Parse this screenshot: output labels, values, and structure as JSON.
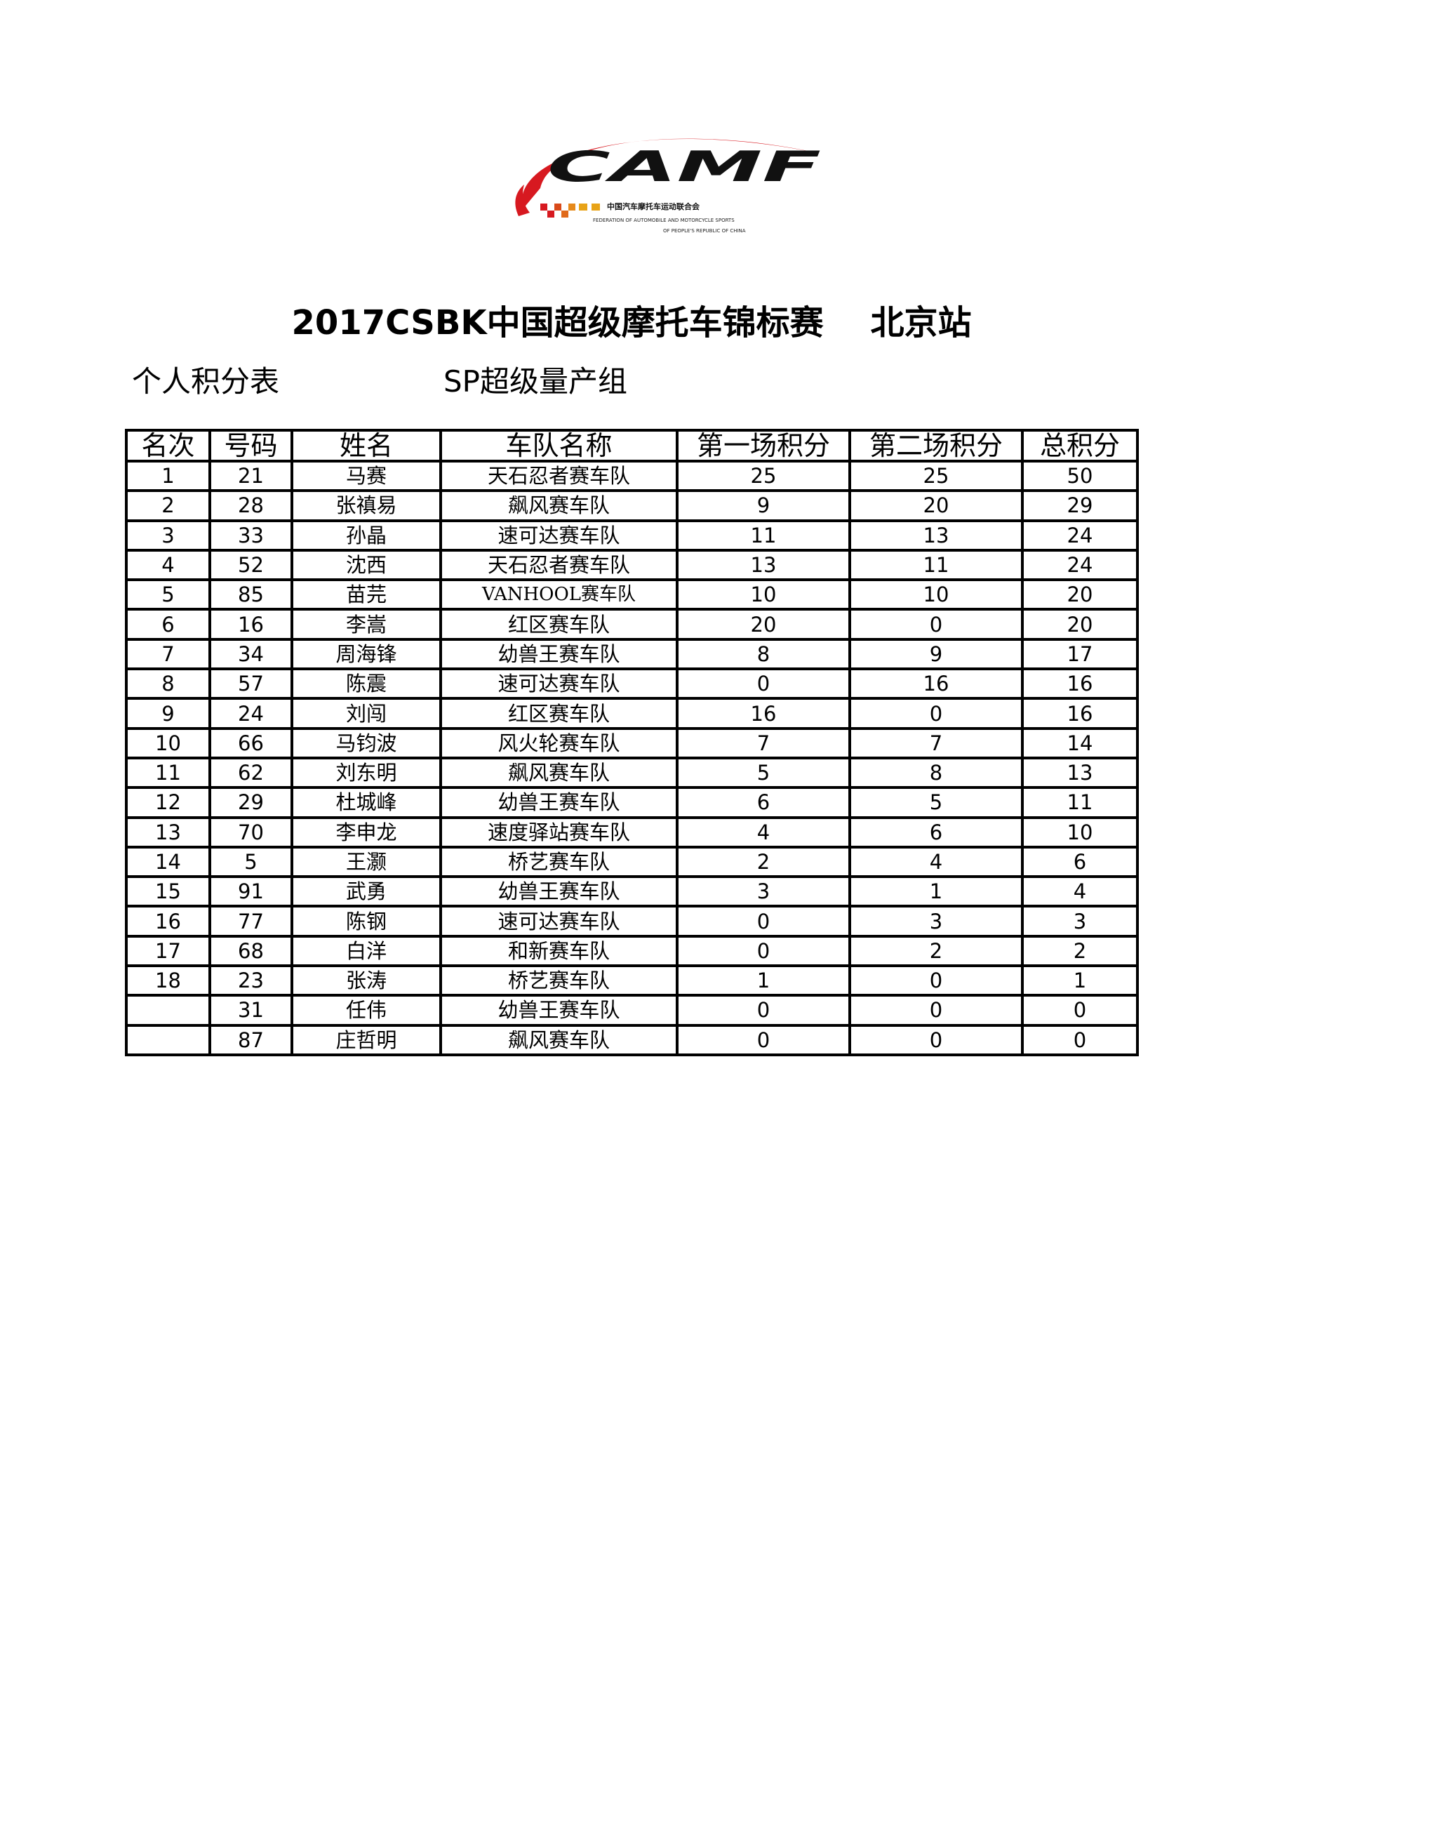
{
  "logo": {
    "text": "CAMF",
    "cn": "中国汽车摩托车运动联合会",
    "en1": "FEDERATION OF AUTOMOBILE AND MOTORCYCLE SPORTS",
    "en2": "OF PEOPLE'S REPUBLIC OF CHINA",
    "colors": {
      "swoosh": "#d71920",
      "wordmark": "#111111",
      "squares": "#e8a317"
    }
  },
  "title": "2017CSBK中国超级摩托车锦标赛    北京站",
  "subtitle_left": "个人积分表",
  "subtitle_right": "SP超级量产组",
  "table": {
    "headers": [
      "名次",
      "号码",
      "姓名",
      "车队名称",
      "第一场积分",
      "第二场积分",
      "总积分"
    ],
    "rows": [
      [
        "1",
        "21",
        "马赛",
        "天石忍者赛车队",
        "25",
        "25",
        "50"
      ],
      [
        "2",
        "28",
        "张禛易",
        "飙风赛车队",
        "9",
        "20",
        "29"
      ],
      [
        "3",
        "33",
        "孙晶",
        "速可达赛车队",
        "11",
        "13",
        "24"
      ],
      [
        "4",
        "52",
        "沈西",
        "天石忍者赛车队",
        "13",
        "11",
        "24"
      ],
      [
        "5",
        "85",
        "苗芫",
        "VANHOOL赛车队",
        "10",
        "10",
        "20"
      ],
      [
        "6",
        "16",
        "李嵩",
        "红区赛车队",
        "20",
        "0",
        "20"
      ],
      [
        "7",
        "34",
        "周海锋",
        "幼兽王赛车队",
        "8",
        "9",
        "17"
      ],
      [
        "8",
        "57",
        "陈震",
        "速可达赛车队",
        "0",
        "16",
        "16"
      ],
      [
        "9",
        "24",
        "刘闯",
        "红区赛车队",
        "16",
        "0",
        "16"
      ],
      [
        "10",
        "66",
        "马钧波",
        "风火轮赛车队",
        "7",
        "7",
        "14"
      ],
      [
        "11",
        "62",
        "刘东明",
        "飙风赛车队",
        "5",
        "8",
        "13"
      ],
      [
        "12",
        "29",
        "杜城峰",
        "幼兽王赛车队",
        "6",
        "5",
        "11"
      ],
      [
        "13",
        "70",
        "李申龙",
        "速度驿站赛车队",
        "4",
        "6",
        "10"
      ],
      [
        "14",
        "5",
        "王灏",
        "桥艺赛车队",
        "2",
        "4",
        "6"
      ],
      [
        "15",
        "91",
        "武勇",
        "幼兽王赛车队",
        "3",
        "1",
        "4"
      ],
      [
        "16",
        "77",
        "陈钢",
        "速可达赛车队",
        "0",
        "3",
        "3"
      ],
      [
        "17",
        "68",
        "白洋",
        "和新赛车队",
        "0",
        "2",
        "2"
      ],
      [
        "18",
        "23",
        "张涛",
        "桥艺赛车队",
        "1",
        "0",
        "1"
      ],
      [
        "",
        "31",
        "任伟",
        "幼兽王赛车队",
        "0",
        "0",
        "0"
      ],
      [
        "",
        "87",
        "庄哲明",
        "飙风赛车队",
        "0",
        "0",
        "0"
      ]
    ]
  }
}
